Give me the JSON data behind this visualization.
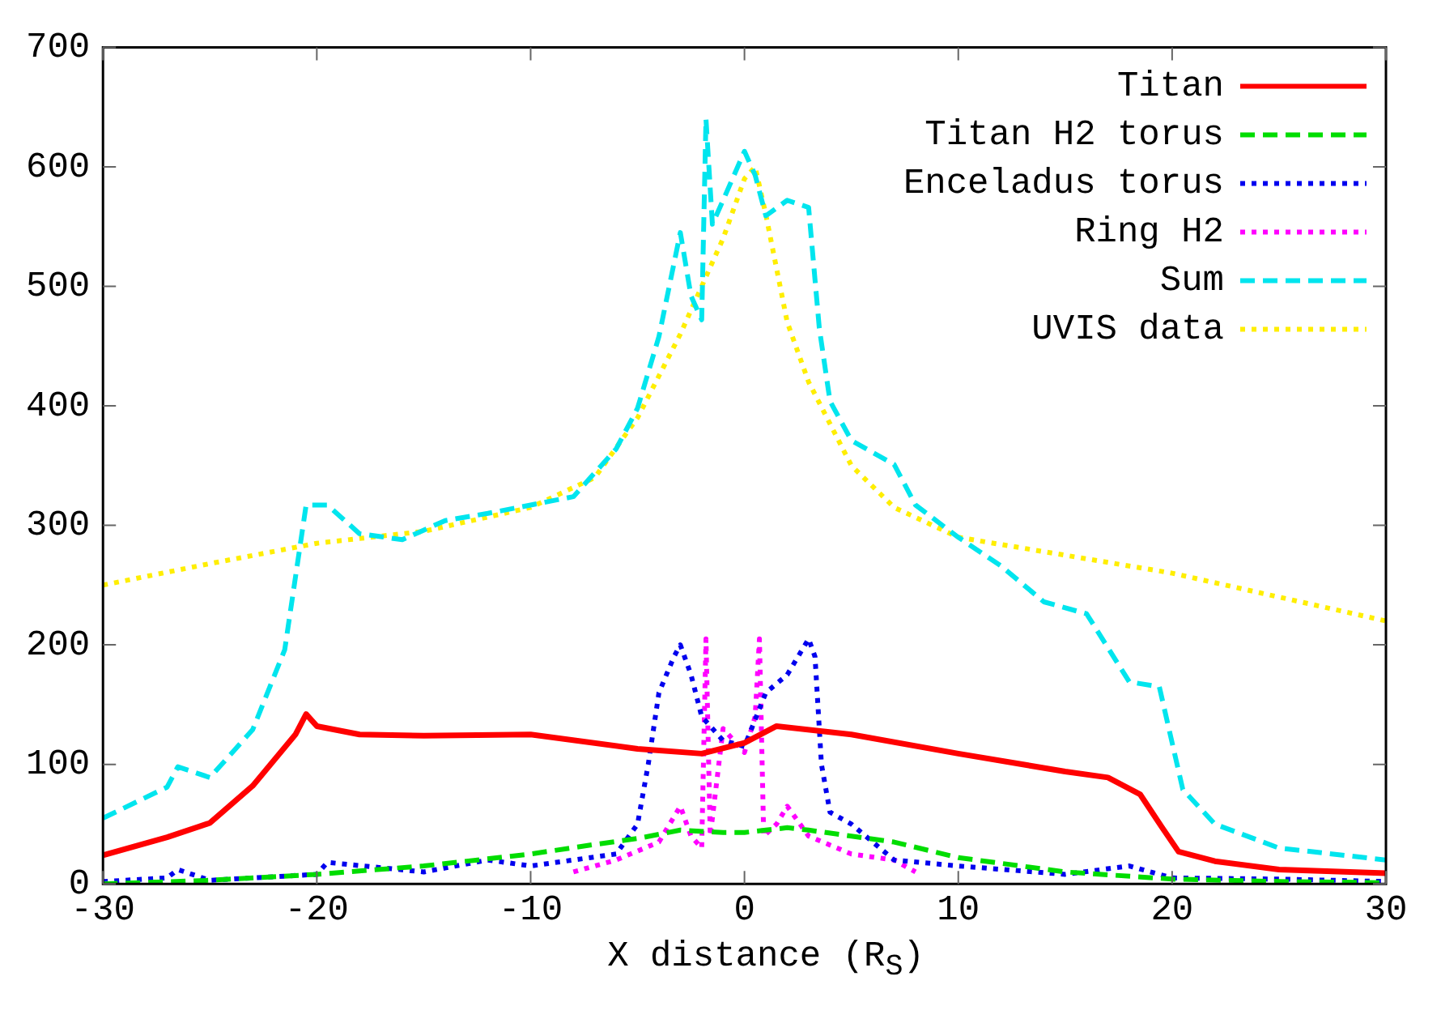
{
  "chart_data": {
    "type": "line",
    "xlabel": "X distance (R$_{S}$)",
    "xlim": [
      -30,
      30
    ],
    "xticks": [
      -30,
      -20,
      -10,
      0,
      10,
      20,
      30
    ],
    "ylim": [
      0,
      700
    ],
    "yticks": [
      0,
      100,
      200,
      300,
      400,
      500,
      600,
      700
    ],
    "grid": false,
    "legend": "top right",
    "marker": "none",
    "series": [
      {
        "name": "Titan",
        "color": "#ff0000",
        "line_style": "solid",
        "x": [
          -30,
          -27,
          -25,
          -23,
          -21,
          -20.5,
          -20,
          -18,
          -15,
          -10,
          -5,
          -2,
          0,
          1.5,
          5,
          10,
          15,
          17,
          18.5,
          19.5,
          20.3,
          22,
          25,
          30
        ],
        "values": [
          24,
          39,
          51,
          82,
          125,
          142,
          132,
          125,
          124,
          125,
          113,
          109,
          118,
          132,
          125,
          109,
          94,
          89,
          75,
          48,
          27,
          19,
          12,
          9
        ]
      },
      {
        "name": "Titan H2 torus",
        "color": "#00dd00",
        "line_style": "dashed",
        "x": [
          -30,
          -25,
          -20,
          -15,
          -10,
          -7,
          -5,
          -3,
          -1,
          0,
          1,
          2,
          3,
          5,
          7,
          10,
          15,
          20,
          25,
          30
        ],
        "values": [
          0,
          3,
          8,
          15,
          25,
          33,
          38,
          45,
          43,
          43,
          45,
          47,
          45,
          40,
          35,
          22,
          10,
          4,
          2,
          1
        ]
      },
      {
        "name": "Enceladus torus",
        "color": "#0000ee",
        "line_style": "dotted",
        "x": [
          -30,
          -27,
          -26.5,
          -25,
          -20,
          -19.5,
          -15,
          -12,
          -10,
          -8,
          -6,
          -5,
          -4.5,
          -4,
          -3.3,
          -3,
          -2.5,
          -2,
          -1,
          0,
          1,
          2,
          3,
          3.3,
          3.6,
          4,
          5,
          7,
          10,
          15,
          18,
          20,
          25,
          30
        ],
        "values": [
          2,
          5,
          12,
          3,
          8,
          18,
          10,
          20,
          15,
          20,
          25,
          50,
          100,
          160,
          190,
          200,
          175,
          140,
          120,
          115,
          160,
          175,
          205,
          190,
          100,
          60,
          50,
          20,
          15,
          8,
          15,
          5,
          4,
          2
        ]
      },
      {
        "name": "Ring H2",
        "color": "#ff00ff",
        "line_style": "dotted",
        "x": [
          -8,
          -6,
          -4,
          -3,
          -2.5,
          -2,
          -1.8,
          -1.6,
          -1,
          0,
          0.5,
          0.7,
          0.9,
          1.5,
          2,
          3,
          5,
          7,
          8
        ],
        "values": [
          10,
          20,
          35,
          65,
          40,
          30,
          205,
          40,
          130,
          110,
          140,
          205,
          40,
          50,
          65,
          40,
          25,
          20,
          10
        ]
      },
      {
        "name": "Sum",
        "color": "#00e5ee",
        "line_style": "dashed",
        "x": [
          -30,
          -27,
          -26.5,
          -25,
          -23,
          -21.5,
          -20.5,
          -19.5,
          -18,
          -16,
          -14,
          -12,
          -10,
          -8,
          -6,
          -5,
          -4,
          -3,
          -2.5,
          -2,
          -1.8,
          -1.5,
          -1,
          0,
          0.5,
          1,
          2,
          3,
          3.5,
          4,
          5,
          7,
          8,
          10,
          12,
          14,
          16,
          18,
          19.4,
          20.5,
          22,
          25,
          30
        ],
        "values": [
          55,
          81,
          98,
          89,
          129,
          196,
          317,
          317,
          293,
          288,
          304,
          310,
          317,
          324,
          364,
          398,
          458,
          545,
          492,
          472,
          640,
          552,
          572,
          613,
          593,
          559,
          572,
          566,
          465,
          404,
          371,
          351,
          317,
          290,
          266,
          236,
          226,
          169,
          165,
          79,
          50,
          30,
          20
        ]
      },
      {
        "name": "UVIS data",
        "color": "#ffee00",
        "line_style": "dotted",
        "x": [
          -30,
          -25,
          -20,
          -15,
          -10,
          -7,
          -5,
          -3,
          -1,
          0,
          0.5,
          1,
          2,
          3,
          5,
          7,
          10,
          15,
          20,
          25,
          30
        ],
        "values": [
          250,
          268,
          285,
          295,
          315,
          340,
          390,
          460,
          540,
          590,
          600,
          560,
          470,
          420,
          350,
          315,
          290,
          275,
          260,
          240,
          220
        ]
      }
    ]
  }
}
